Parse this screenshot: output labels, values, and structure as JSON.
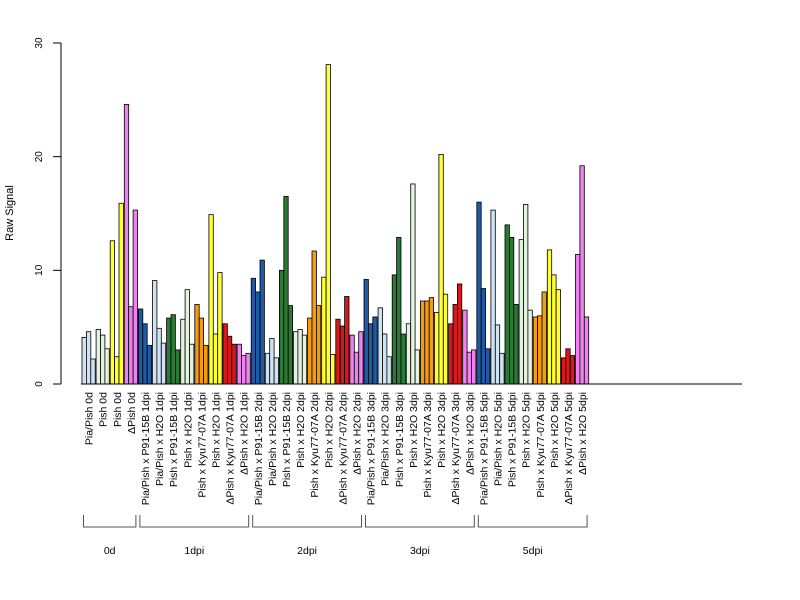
{
  "chart_data": {
    "type": "bar",
    "ylabel": "Raw Signal",
    "xlabel": "",
    "ylim": [
      0,
      30
    ],
    "yticks": [
      0,
      10,
      20,
      30
    ],
    "grid": false,
    "legend": "none",
    "categories": [
      {
        "label": "Pia/Pish 0d",
        "color": "#cfe3f2",
        "values": [
          4.1,
          4.6,
          2.2
        ]
      },
      {
        "label": "Pish 0d",
        "color": "#e4f2e0",
        "values": [
          4.8,
          4.3,
          3.1
        ]
      },
      {
        "label": "Pish 0d",
        "color": "#ffff33",
        "values": [
          12.6,
          2.4,
          15.9
        ]
      },
      {
        "label": "ΔPish 0d",
        "color": "#ee82ee",
        "values": [
          24.6,
          6.8,
          15.3
        ]
      },
      {
        "label": "Pia/Pish x P91-15B 1dpi",
        "color": "#1f5aa6",
        "values": [
          6.6,
          5.3,
          3.4
        ]
      },
      {
        "label": "Pia/Pish x H2O 1dpi",
        "color": "#cfe3f2",
        "values": [
          9.1,
          4.9,
          3.6
        ]
      },
      {
        "label": "Pish x P91-15B 1dpi",
        "color": "#2a7a35",
        "values": [
          5.8,
          6.1,
          3.0
        ]
      },
      {
        "label": "Pish x H2O 1dpi",
        "color": "#e4f2e0",
        "values": [
          5.7,
          8.3,
          3.5
        ]
      },
      {
        "label": "Pish x Kyu77-07A 1dpi",
        "color": "#f39c12",
        "values": [
          7.0,
          5.8,
          3.4
        ]
      },
      {
        "label": "Pish x H2O 1dpi",
        "color": "#ffff33",
        "values": [
          14.9,
          4.4,
          9.8
        ]
      },
      {
        "label": "ΔPish x Kyu77-07A 1dpi",
        "color": "#d7191c",
        "values": [
          5.3,
          4.2,
          3.5
        ]
      },
      {
        "label": "ΔPish x H2O 1dpi",
        "color": "#ee82ee",
        "values": [
          3.5,
          2.5,
          2.7
        ]
      },
      {
        "label": "Pia/Pish x P91-15B 2dpi",
        "color": "#1f5aa6",
        "values": [
          9.3,
          8.1,
          10.9
        ]
      },
      {
        "label": "Pia/Pish x H2O 2dpi",
        "color": "#cfe3f2",
        "values": [
          2.7,
          4.0,
          2.3
        ]
      },
      {
        "label": "Pish x P91-15B 2dpi",
        "color": "#2a7a35",
        "values": [
          10.0,
          16.5,
          6.9
        ]
      },
      {
        "label": "Pish x H2O 2dpi",
        "color": "#e4f2e0",
        "values": [
          4.6,
          4.8,
          4.3
        ]
      },
      {
        "label": "Pish x Kyu77-07A 2dpi",
        "color": "#f39c12",
        "values": [
          5.8,
          11.7,
          6.9
        ]
      },
      {
        "label": "Pish x H2O 2dpi",
        "color": "#ffff33",
        "values": [
          9.4,
          28.1,
          2.6
        ]
      },
      {
        "label": "ΔPish x Kyu77-07A 2dpi",
        "color": "#d7191c",
        "values": [
          5.7,
          5.1,
          7.7
        ]
      },
      {
        "label": "ΔPish x H2O 2dpi",
        "color": "#ee82ee",
        "values": [
          4.3,
          2.8,
          4.6
        ]
      },
      {
        "label": "Pia/Pish x P91-15B 3dpi",
        "color": "#1f5aa6",
        "values": [
          9.2,
          5.3,
          5.9
        ]
      },
      {
        "label": "Pia/Pish x H2O 3dpi",
        "color": "#cfe3f2",
        "values": [
          6.7,
          4.4,
          2.4
        ]
      },
      {
        "label": "Pish x P91-15B 3dpi",
        "color": "#2a7a35",
        "values": [
          9.6,
          12.9,
          4.4
        ]
      },
      {
        "label": "Pish x H2O 3dpi",
        "color": "#e4f2e0",
        "values": [
          5.3,
          17.6,
          3.0
        ]
      },
      {
        "label": "Pish x Kyu77-07A 3dpi",
        "color": "#f39c12",
        "values": [
          7.3,
          7.3,
          7.6
        ]
      },
      {
        "label": "Pish x H2O 3dpi",
        "color": "#ffff33",
        "values": [
          6.3,
          20.2,
          7.9
        ]
      },
      {
        "label": "ΔPish x Kyu77-07A 3dpi",
        "color": "#d7191c",
        "values": [
          5.3,
          7.0,
          8.8
        ]
      },
      {
        "label": "ΔPish x H2O 3dpi",
        "color": "#ee82ee",
        "values": [
          6.5,
          2.8,
          3.0
        ]
      },
      {
        "label": "Pia/Pish x P91-15B 5dpi",
        "color": "#1f5aa6",
        "values": [
          16.0,
          8.4,
          3.1
        ]
      },
      {
        "label": "Pia/Pish x H2O 5dpi",
        "color": "#cfe3f2",
        "values": [
          15.3,
          5.2,
          2.7
        ]
      },
      {
        "label": "Pish x P91-15B 5dpi",
        "color": "#2a7a35",
        "values": [
          14.0,
          12.9,
          7.0
        ]
      },
      {
        "label": "Pish x H2O 5dpi",
        "color": "#e4f2e0",
        "values": [
          12.7,
          15.8,
          6.5
        ]
      },
      {
        "label": "Pish x Kyu77-07A 5dpi",
        "color": "#f39c12",
        "values": [
          5.9,
          6.0,
          8.1
        ]
      },
      {
        "label": "Pish x H2O 5dpi",
        "color": "#ffff33",
        "values": [
          11.8,
          9.6,
          8.3
        ]
      },
      {
        "label": "ΔPish x Kyu77-07A 5dpi",
        "color": "#d7191c",
        "values": [
          2.3,
          3.1,
          2.5
        ]
      },
      {
        "label": "ΔPish x H2O 5dpi",
        "color": "#ee82ee",
        "values": [
          11.4,
          19.2,
          5.9
        ]
      }
    ],
    "groups": [
      {
        "label": "0d",
        "from": 0,
        "to": 3
      },
      {
        "label": "1dpi",
        "from": 4,
        "to": 11
      },
      {
        "label": "2dpi",
        "from": 12,
        "to": 19
      },
      {
        "label": "3dpi",
        "from": 20,
        "to": 27
      },
      {
        "label": "5dpi",
        "from": 28,
        "to": 35
      }
    ]
  }
}
